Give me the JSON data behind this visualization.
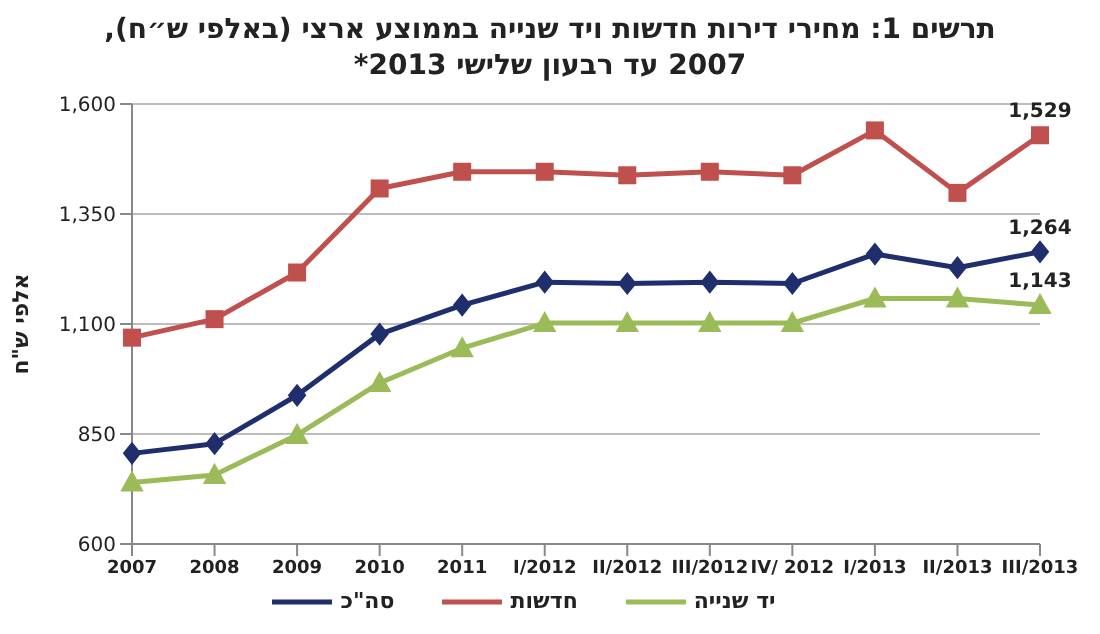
{
  "chart_data": {
    "type": "line",
    "title": "תרשים 1: מחירי דירות חדשות ויד שנייה בממוצע ארצי (באלפי ש״ח),",
    "subtitle": "2007 עד רבעון שלישי 2013*",
    "ylabel": "אלפי ש\"ח",
    "categories": [
      "2007",
      "2008",
      "2009",
      "2010",
      "2011",
      "I/2012",
      "II/2012",
      "III/2012",
      "IV/ 2012",
      "I/2013",
      "II/2013",
      "III/2013"
    ],
    "series": [
      {
        "name": "סה\"כ",
        "color": "#1f2f6e",
        "marker": "diamond",
        "values": [
          806,
          828,
          938,
          1077,
          1143,
          1195,
          1192,
          1195,
          1192,
          1259,
          1228,
          1264
        ],
        "value_labels": [
          null,
          null,
          null,
          null,
          null,
          null,
          null,
          null,
          null,
          null,
          null,
          "1,264"
        ]
      },
      {
        "name": "חדשות",
        "color": "#c0504d",
        "marker": "square",
        "values": [
          1069,
          1111,
          1217,
          1408,
          1446,
          1446,
          1438,
          1446,
          1438,
          1540,
          1398,
          1529
        ],
        "value_labels": [
          null,
          null,
          null,
          null,
          null,
          null,
          null,
          null,
          null,
          null,
          null,
          "1,529"
        ]
      },
      {
        "name": "יד שנייה",
        "color": "#9bbb59",
        "marker": "triangle",
        "values": [
          740,
          757,
          848,
          966,
          1045,
          1102,
          1102,
          1102,
          1102,
          1158,
          1158,
          1143
        ],
        "value_labels": [
          null,
          null,
          null,
          null,
          null,
          null,
          null,
          null,
          null,
          null,
          null,
          "1,143"
        ]
      }
    ],
    "ylim": [
      600,
      1600
    ],
    "yticks": [
      {
        "value": 600,
        "label": "600"
      },
      {
        "value": 850,
        "label": "850"
      },
      {
        "value": 1100,
        "label": "1,100"
      },
      {
        "value": 1350,
        "label": "1,350"
      },
      {
        "value": 1600,
        "label": "1,600"
      }
    ],
    "grid": "y",
    "legend": "bottom"
  }
}
